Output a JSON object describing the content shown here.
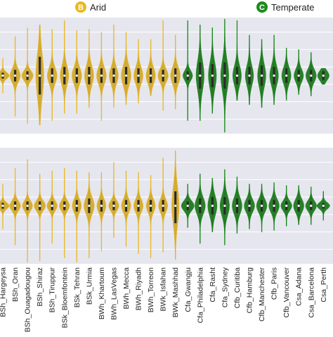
{
  "legend": [
    {
      "badge": "B",
      "label": "Arid",
      "color": "#e8b923"
    },
    {
      "badge": "C",
      "label": "Temperate",
      "color": "#1f8a1f"
    }
  ],
  "colors": {
    "arid": "#e8b923",
    "arid_fill": "#d4aa2c",
    "temperate": "#1a8a1a",
    "temperate_fill": "#1f7a1f",
    "panel_bg": "#e6e6ef",
    "grid": "#ffffff"
  },
  "chart_data": {
    "type": "violin",
    "grid": true,
    "panels": [
      "upper",
      "lower"
    ],
    "categories": [
      {
        "label": "BSh_Hargeysa",
        "group": "Arid"
      },
      {
        "label": "BSh_Oran",
        "group": "Arid"
      },
      {
        "label": "BSh_Ouagadougou",
        "group": "Arid"
      },
      {
        "label": "BSh_Shiraz",
        "group": "Arid"
      },
      {
        "label": "BSh_Tiruppur",
        "group": "Arid"
      },
      {
        "label": "BSk_Bloemfontein",
        "group": "Arid"
      },
      {
        "label": "BSk_Tehran",
        "group": "Arid"
      },
      {
        "label": "BSk_Urmia",
        "group": "Arid"
      },
      {
        "label": "BWh_Khartoum",
        "group": "Arid"
      },
      {
        "label": "BWh_LasVegas",
        "group": "Arid"
      },
      {
        "label": "BWh_Mecca",
        "group": "Arid"
      },
      {
        "label": "BWh_Riyadh",
        "group": "Arid"
      },
      {
        "label": "BWh_Torreon",
        "group": "Arid"
      },
      {
        "label": "BWk_Isfahan",
        "group": "Arid"
      },
      {
        "label": "BWk_Mashhad",
        "group": "Arid"
      },
      {
        "label": "Cfa_Gwangju",
        "group": "Temperate"
      },
      {
        "label": "Cfa_Philadelphia",
        "group": "Temperate"
      },
      {
        "label": "Cfa_Rasht",
        "group": "Temperate"
      },
      {
        "label": "Cfa_Sydney",
        "group": "Temperate"
      },
      {
        "label": "Cfb_Curitiba",
        "group": "Temperate"
      },
      {
        "label": "Cfb_Hamburg",
        "group": "Temperate"
      },
      {
        "label": "Cfb_Manchester",
        "group": "Temperate"
      },
      {
        "label": "Cfb_Paris",
        "group": "Temperate"
      },
      {
        "label": "Cfb_Vancouver",
        "group": "Temperate"
      },
      {
        "label": "Csa_Adana",
        "group": "Temperate"
      },
      {
        "label": "Csa_Barcelona",
        "group": "Temperate"
      },
      {
        "label": "Csa_Perth",
        "group": "Temperate"
      }
    ],
    "upper": {
      "median": [
        0,
        0,
        0,
        0,
        0,
        0,
        0,
        0,
        0,
        0,
        0,
        0,
        0,
        0,
        0,
        0,
        0,
        0,
        0,
        0,
        0,
        0,
        0,
        0,
        0,
        0,
        0
      ],
      "q1": [
        -0.2,
        -0.4,
        -0.3,
        -1.3,
        -0.5,
        -0.6,
        -0.5,
        -0.6,
        -0.5,
        -0.5,
        -0.6,
        -0.5,
        -0.5,
        -0.4,
        -0.5,
        -0.3,
        -0.9,
        -0.8,
        -0.9,
        -0.6,
        -0.6,
        -0.7,
        -0.6,
        -0.5,
        -0.4,
        -0.4,
        -0.3
      ],
      "q3": [
        0.2,
        0.4,
        0.3,
        1.3,
        0.5,
        0.6,
        0.5,
        0.6,
        0.5,
        0.5,
        0.6,
        0.5,
        0.5,
        0.4,
        0.5,
        0.3,
        0.9,
        0.8,
        0.9,
        0.6,
        0.6,
        0.7,
        0.6,
        0.5,
        0.4,
        0.4,
        0.3
      ],
      "min": [
        -1.2,
        -2.8,
        -3.3,
        -3.4,
        -3.1,
        -2.6,
        -2.6,
        -2.2,
        -3.1,
        -2.2,
        -2.0,
        -1.9,
        -1.4,
        -2.4,
        -2.3,
        -3.1,
        -3.1,
        -2.6,
        -3.9,
        -1.7,
        -2.0,
        -2.2,
        -2.0,
        -1.7,
        -1.3,
        -1.4,
        -0.6
      ],
      "max": [
        1.2,
        2.7,
        3.3,
        3.5,
        3.2,
        3.8,
        3.1,
        3.2,
        3.0,
        3.5,
        3.0,
        2.5,
        2.5,
        3.8,
        2.8,
        3.8,
        3.5,
        3.3,
        3.9,
        3.8,
        2.8,
        2.5,
        2.8,
        1.9,
        1.8,
        1.6,
        0.5
      ],
      "density": [
        1.0,
        0.8,
        0.9,
        0.6,
        0.75,
        0.65,
        0.75,
        0.7,
        0.75,
        0.7,
        0.75,
        0.7,
        0.72,
        0.8,
        0.75,
        0.75,
        0.6,
        0.6,
        0.6,
        0.65,
        0.62,
        0.62,
        0.65,
        0.7,
        0.72,
        0.8,
        0.9
      ],
      "ylim": [
        -4,
        4
      ]
    },
    "lower": {
      "median": [
        0,
        0,
        0,
        0,
        0,
        0,
        0,
        0,
        0,
        0,
        0,
        0,
        0,
        0,
        0,
        0,
        0,
        0,
        0,
        0,
        0,
        0,
        0,
        0,
        0,
        0,
        0
      ],
      "q1": [
        -0.2,
        -0.3,
        -0.3,
        -0.3,
        -0.3,
        -0.3,
        -0.4,
        -0.5,
        -0.4,
        -0.3,
        -0.4,
        -0.4,
        -0.4,
        -0.4,
        -1.2,
        -0.3,
        -0.5,
        -0.6,
        -0.6,
        -0.5,
        -0.4,
        -0.4,
        -0.4,
        -0.3,
        -0.4,
        -0.3,
        -0.2
      ],
      "q3": [
        0.2,
        0.3,
        0.3,
        0.3,
        0.3,
        0.3,
        0.4,
        0.5,
        0.4,
        0.3,
        0.4,
        0.4,
        0.4,
        0.4,
        1.0,
        0.3,
        0.5,
        0.6,
        0.6,
        0.5,
        0.4,
        0.4,
        0.4,
        0.3,
        0.4,
        0.3,
        0.2
      ],
      "min": [
        -1.6,
        -2.7,
        -3.9,
        -3.8,
        -2.6,
        -3.6,
        -3.9,
        -3.6,
        -3.1,
        -2.2,
        -2.8,
        -3.3,
        -3.6,
        -3.2,
        -3.7,
        -1.5,
        -2.6,
        -1.8,
        -2.7,
        -1.9,
        -1.6,
        -1.8,
        -1.7,
        -1.4,
        -1.3,
        -1.3,
        -1.0
      ],
      "max": [
        1.5,
        2.6,
        3.2,
        2.2,
        2.4,
        2.6,
        2.4,
        2.3,
        2.3,
        3.0,
        2.4,
        2.3,
        2.1,
        3.3,
        3.8,
        1.5,
        2.2,
        1.9,
        2.5,
        2.0,
        1.5,
        1.5,
        1.6,
        1.4,
        1.4,
        1.3,
        1.0
      ],
      "density": [
        1.0,
        0.85,
        0.8,
        0.9,
        0.8,
        0.8,
        0.7,
        0.8,
        0.7,
        0.8,
        0.72,
        0.72,
        0.7,
        0.7,
        0.55,
        1.0,
        0.8,
        0.7,
        0.72,
        0.75,
        0.8,
        0.8,
        0.8,
        0.85,
        0.8,
        0.85,
        1.0
      ],
      "ylim": [
        -4,
        4
      ]
    }
  }
}
